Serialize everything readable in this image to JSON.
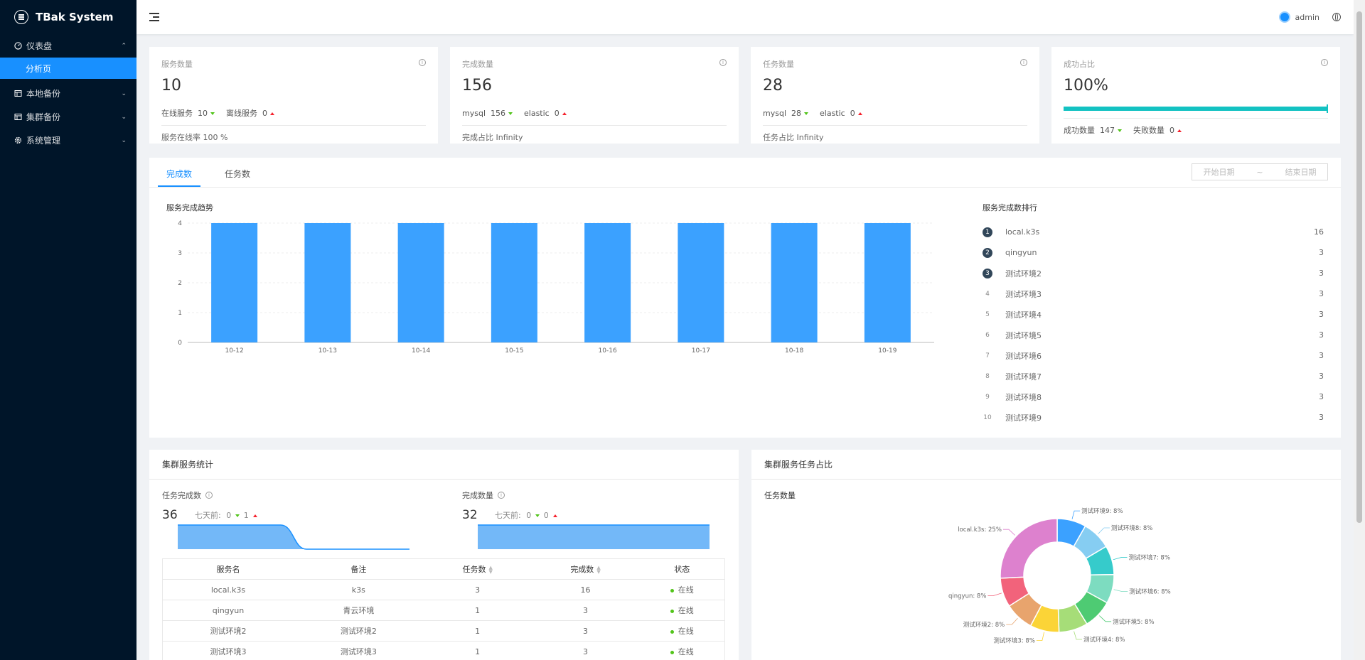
{
  "app": {
    "title": "TBak System"
  },
  "sidebar": {
    "items": [
      {
        "label": "仪表盘",
        "icon": "dashboard-icon",
        "expanded": true,
        "children": [
          {
            "label": "分析页",
            "active": true
          }
        ]
      },
      {
        "label": "本地备份",
        "icon": "table-icon",
        "expanded": false
      },
      {
        "label": "集群备份",
        "icon": "table-icon",
        "expanded": false
      },
      {
        "label": "系统管理",
        "icon": "gear-icon",
        "expanded": false
      }
    ]
  },
  "header": {
    "user": "admin"
  },
  "stats": [
    {
      "title": "服务数量",
      "value": "10",
      "a_label": "在线服务",
      "a_val": "10",
      "b_label": "离线服务",
      "b_val": "0",
      "footer": "服务在线率 100 %"
    },
    {
      "title": "完成数量",
      "value": "156",
      "a_label": "mysql",
      "a_val": "156",
      "b_label": "elastic",
      "b_val": "0",
      "footer": "完成占比 Infinity"
    },
    {
      "title": "任务数量",
      "value": "28",
      "a_label": "mysql",
      "a_val": "28",
      "b_label": "elastic",
      "b_val": "0",
      "footer": "任务占比 Infinity"
    },
    {
      "title": "成功占比",
      "value": "100%",
      "progress": 1.0,
      "a_label": "成功数量",
      "a_val": "147",
      "b_label": "失败数量",
      "b_val": "0"
    }
  ],
  "tabs": {
    "items": [
      "完成数",
      "任务数"
    ],
    "active": 0,
    "start_placeholder": "开始日期",
    "separator": "~",
    "end_placeholder": "结束日期"
  },
  "trend": {
    "title": "服务完成趋势"
  },
  "chart_data": {
    "type": "bar",
    "categories": [
      "10-12",
      "10-13",
      "10-14",
      "10-15",
      "10-16",
      "10-17",
      "10-18",
      "10-19"
    ],
    "values": [
      4,
      4,
      4,
      4,
      4,
      4,
      4,
      4
    ],
    "ylim": [
      0,
      4
    ],
    "yticks": [
      0,
      1,
      2,
      3,
      4
    ],
    "color": "#3ba1ff",
    "title": "",
    "xlabel": "",
    "ylabel": ""
  },
  "ranking": {
    "title": "服务完成数排行",
    "items": [
      {
        "rank": "1",
        "name": "local.k3s",
        "value": "16"
      },
      {
        "rank": "2",
        "name": "qingyun",
        "value": "3"
      },
      {
        "rank": "3",
        "name": "测试环境2",
        "value": "3"
      },
      {
        "rank": "4",
        "name": "测试环境3",
        "value": "3"
      },
      {
        "rank": "5",
        "name": "测试环境4",
        "value": "3"
      },
      {
        "rank": "6",
        "name": "测试环境5",
        "value": "3"
      },
      {
        "rank": "7",
        "name": "测试环境6",
        "value": "3"
      },
      {
        "rank": "8",
        "name": "测试环境7",
        "value": "3"
      },
      {
        "rank": "9",
        "name": "测试环境8",
        "value": "3"
      },
      {
        "rank": "10",
        "name": "测试环境9",
        "value": "3"
      }
    ]
  },
  "cluster_stats": {
    "title": "集群服务统计",
    "task_done": {
      "label": "任务完成数",
      "value": "36",
      "prefix": "七天前:",
      "a": "0",
      "b": "1",
      "spark": [
        1,
        1,
        1,
        1,
        1,
        0,
        0,
        0,
        0,
        0
      ]
    },
    "done_count": {
      "label": "完成数量",
      "value": "32",
      "prefix": "七天前:",
      "a": "0",
      "b": "0",
      "spark": [
        1,
        1,
        1,
        1,
        1,
        1,
        1,
        1,
        1,
        1
      ]
    },
    "spark_color": "#1890ff",
    "table": {
      "columns": [
        "服务名",
        "备注",
        "任务数",
        "完成数",
        "状态"
      ],
      "rows": [
        [
          "local.k3s",
          "k3s",
          "3",
          "16",
          "在线"
        ],
        [
          "qingyun",
          "青云环境",
          "1",
          "3",
          "在线"
        ],
        [
          "测试环境2",
          "测试环境2",
          "1",
          "3",
          "在线"
        ],
        [
          "测试环境3",
          "测试环境3",
          "1",
          "3",
          "在线"
        ]
      ]
    }
  },
  "cluster_share": {
    "title": "集群服务任务占比",
    "subtitle": "任务数量",
    "slices": [
      {
        "label": "测试环境9: 8%",
        "value": 8,
        "color": "#3ba1ff"
      },
      {
        "label": "测试环境8: 8%",
        "value": 8,
        "color": "#86cdf2"
      },
      {
        "label": "测试环境7: 8%",
        "value": 8,
        "color": "#36cbcb"
      },
      {
        "label": "测试环境6: 8%",
        "value": 8,
        "color": "#7ddcc0"
      },
      {
        "label": "测试环境5: 8%",
        "value": 8,
        "color": "#4ecb73"
      },
      {
        "label": "测试环境4: 8%",
        "value": 8,
        "color": "#a6dd78"
      },
      {
        "label": "测试环境3: 8%",
        "value": 8,
        "color": "#fbd437"
      },
      {
        "label": "测试环境2: 8%",
        "value": 8,
        "color": "#e8a46d"
      },
      {
        "label": "qingyun: 8%",
        "value": 8,
        "color": "#f2637b"
      },
      {
        "label": "local.k3s: 25%",
        "value": 25,
        "color": "#dd81ce"
      }
    ]
  }
}
